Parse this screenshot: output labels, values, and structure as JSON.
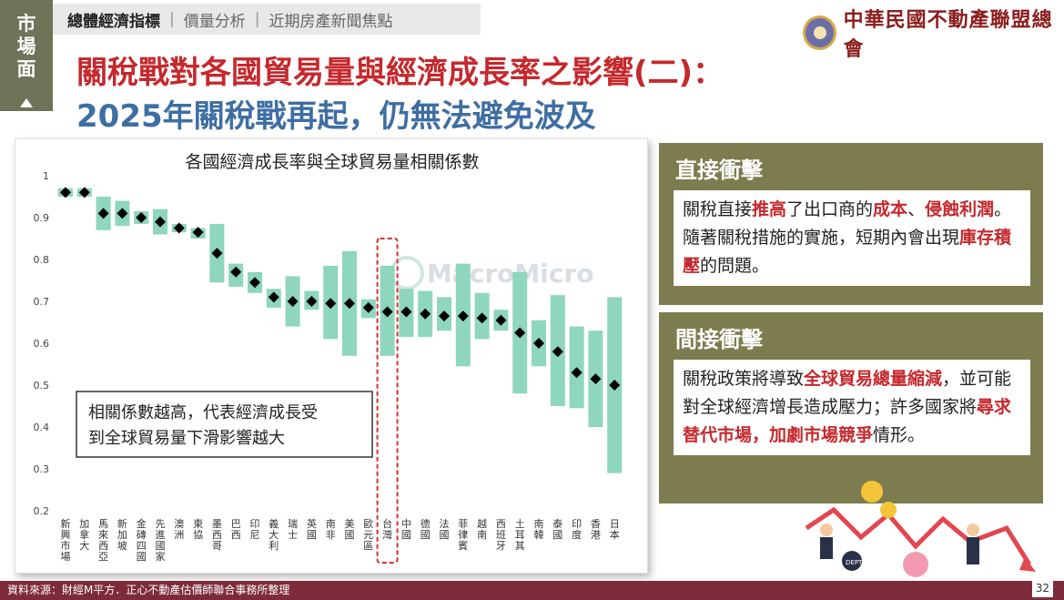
{
  "side_tab": {
    "label": "市場面"
  },
  "nav": {
    "items": [
      "總體經濟指標",
      "價量分析",
      "近期房產新聞焦點"
    ]
  },
  "logo": {
    "org_name": "中華民國不動產聯盟總會"
  },
  "title": {
    "line1": "關稅戰對各國貿易量與經濟成長率之影響(二)：",
    "line2": "2025年關稅戰再起，仍無法避免波及"
  },
  "chart_data": {
    "type": "scatter",
    "title": "各國經濟成長率與全球貿易量相關係數",
    "watermark": "MacroMicro",
    "ylim": [
      0.2,
      1.0
    ],
    "yticks": [
      "0.2",
      "0.3",
      "0.4",
      "0.5",
      "0.6",
      "0.7",
      "0.8",
      "0.9",
      "1"
    ],
    "grid": false,
    "categories": [
      "新興市場",
      "加拿大",
      "馬來西亞",
      "新加坡",
      "金磚四國",
      "先進國家",
      "澳洲",
      "東協",
      "墨西哥",
      "巴西",
      "印尼",
      "義大利",
      "瑞士",
      "英國",
      "南非",
      "美國",
      "歐元區",
      "台灣",
      "中國",
      "德國",
      "法國",
      "菲律賓",
      "越南",
      "西班牙",
      "土耳其",
      "南韓",
      "泰國",
      "印度",
      "香港",
      "日本"
    ],
    "values": [
      0.96,
      0.96,
      0.91,
      0.91,
      0.9,
      0.89,
      0.875,
      0.865,
      0.815,
      0.77,
      0.745,
      0.71,
      0.7,
      0.7,
      0.695,
      0.695,
      0.685,
      0.675,
      0.675,
      0.67,
      0.665,
      0.665,
      0.66,
      0.655,
      0.625,
      0.6,
      0.58,
      0.53,
      0.515,
      0.5
    ],
    "ranges": [
      [
        0.95,
        0.97
      ],
      [
        0.95,
        0.97
      ],
      [
        0.87,
        0.95
      ],
      [
        0.88,
        0.94
      ],
      [
        0.885,
        0.915
      ],
      [
        0.86,
        0.92
      ],
      [
        0.865,
        0.885
      ],
      [
        0.85,
        0.875
      ],
      [
        0.745,
        0.885
      ],
      [
        0.735,
        0.79
      ],
      [
        0.72,
        0.77
      ],
      [
        0.685,
        0.73
      ],
      [
        0.64,
        0.76
      ],
      [
        0.68,
        0.725
      ],
      [
        0.61,
        0.785
      ],
      [
        0.57,
        0.82
      ],
      [
        0.66,
        0.705
      ],
      [
        0.57,
        0.785
      ],
      [
        0.615,
        0.73
      ],
      [
        0.615,
        0.725
      ],
      [
        0.63,
        0.71
      ],
      [
        0.545,
        0.79
      ],
      [
        0.61,
        0.72
      ],
      [
        0.63,
        0.68
      ],
      [
        0.48,
        0.77
      ],
      [
        0.545,
        0.655
      ],
      [
        0.45,
        0.715
      ],
      [
        0.445,
        0.64
      ],
      [
        0.4,
        0.63
      ],
      [
        0.29,
        0.71
      ]
    ],
    "highlight": "台灣",
    "annotation": [
      "相關係數越高，代表經濟成長受",
      "到全球貿易量下滑影響越大"
    ],
    "colors": {
      "range": "#8ed6bd",
      "point": "#000000",
      "highlight_box": "#d93030"
    }
  },
  "cards": [
    {
      "title": "直接衝擊",
      "segments": [
        {
          "t": "關稅直接",
          "hl": false
        },
        {
          "t": "推高",
          "hl": true
        },
        {
          "t": "了出口商的",
          "hl": false
        },
        {
          "t": "成本",
          "hl": true
        },
        {
          "t": "、",
          "hl": false
        },
        {
          "t": "侵蝕利潤",
          "hl": true
        },
        {
          "t": "。隨著關稅措施的實施，短期內會出現",
          "hl": false
        },
        {
          "t": "庫存積壓",
          "hl": true
        },
        {
          "t": "的問題。",
          "hl": false
        }
      ]
    },
    {
      "title": "間接衝擊",
      "segments": [
        {
          "t": "關稅政策將導致",
          "hl": false
        },
        {
          "t": "全球貿易總量縮減",
          "hl": true
        },
        {
          "t": "，並可能對全球經濟增長造成壓力；許多國家將",
          "hl": false
        },
        {
          "t": "尋求替代市場，加劇市場競爭",
          "hl": true
        },
        {
          "t": "情形。",
          "hl": false
        }
      ]
    }
  ],
  "illustration": {
    "debt_label": "DEPT"
  },
  "footer": {
    "source": "資料來源：財經M平方．正心不動產估價師聯合事務所整理",
    "page": "32"
  },
  "colors": {
    "brand_red": "#c5282c",
    "brand_blue": "#3e6ea3",
    "card_bg": "#7d7c4e",
    "footer_bg": "#7d2b3a",
    "side_tab": "#6f7357"
  }
}
